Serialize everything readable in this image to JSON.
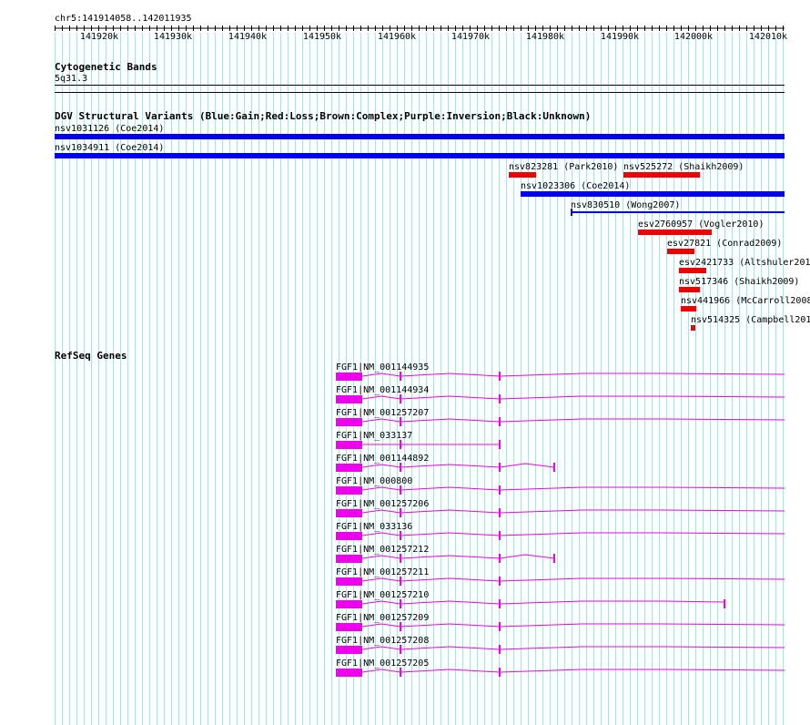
{
  "ruler": {
    "location": "chr5:141914058..142011935",
    "ticks": [
      "141920k",
      "141930k",
      "141940k",
      "141950k",
      "141960k",
      "141970k",
      "141980k",
      "141990k",
      "142000k",
      "142010k"
    ]
  },
  "cytoband": {
    "title": "Cytogenetic Bands",
    "band": "5q31.3"
  },
  "dgv": {
    "title": "DGV Structural Variants (Blue:Gain;Red:Loss;Brown:Complex;Purple:Inversion;Black:Unknown)",
    "colors": {
      "gain": "#0000ee",
      "loss": "#ee0000"
    },
    "variants": [
      {
        "label": "nsv1031126 (Coe2014)",
        "type": "gain"
      },
      {
        "label": "nsv1034911 (Coe2014)",
        "type": "gain"
      },
      {
        "label": "nsv823281 (Park2010)",
        "type": "loss"
      },
      {
        "label": "nsv525272 (Shaikh2009)",
        "type": "loss"
      },
      {
        "label": "nsv1023306 (Coe2014)",
        "type": "gain"
      },
      {
        "label": "nsv830510 (Wong2007)",
        "type": "gain"
      },
      {
        "label": "esv2760957 (Vogler2010)",
        "type": "loss"
      },
      {
        "label": "esv27821 (Conrad2009)",
        "type": "loss"
      },
      {
        "label": "esv2421733 (Altshuler201",
        "type": "loss"
      },
      {
        "label": "nsv517346 (Shaikh2009)",
        "type": "loss"
      },
      {
        "label": "nsv441966 (McCarroll2008",
        "type": "loss"
      },
      {
        "label": "nsv514325 (Campbell201",
        "type": "loss"
      }
    ]
  },
  "refseq": {
    "title": "RefSeq Genes",
    "color": "#ee00ee",
    "genes": [
      {
        "label": "FGF1|NM_001144935"
      },
      {
        "label": "FGF1|NM_001144934"
      },
      {
        "label": "FGF1|NM_001257207"
      },
      {
        "label": "FGF1|NM_033137"
      },
      {
        "label": "FGF1|NM_001144892"
      },
      {
        "label": "FGF1|NM_000800"
      },
      {
        "label": "FGF1|NM_001257206"
      },
      {
        "label": "FGF1|NM_033136"
      },
      {
        "label": "FGF1|NM_001257212"
      },
      {
        "label": "FGF1|NM_001257211"
      },
      {
        "label": "FGF1|NM_001257210"
      },
      {
        "label": "FGF1|NM_001257209"
      },
      {
        "label": "FGF1|NM_001257208"
      },
      {
        "label": "FGF1|NM_001257205"
      }
    ]
  }
}
